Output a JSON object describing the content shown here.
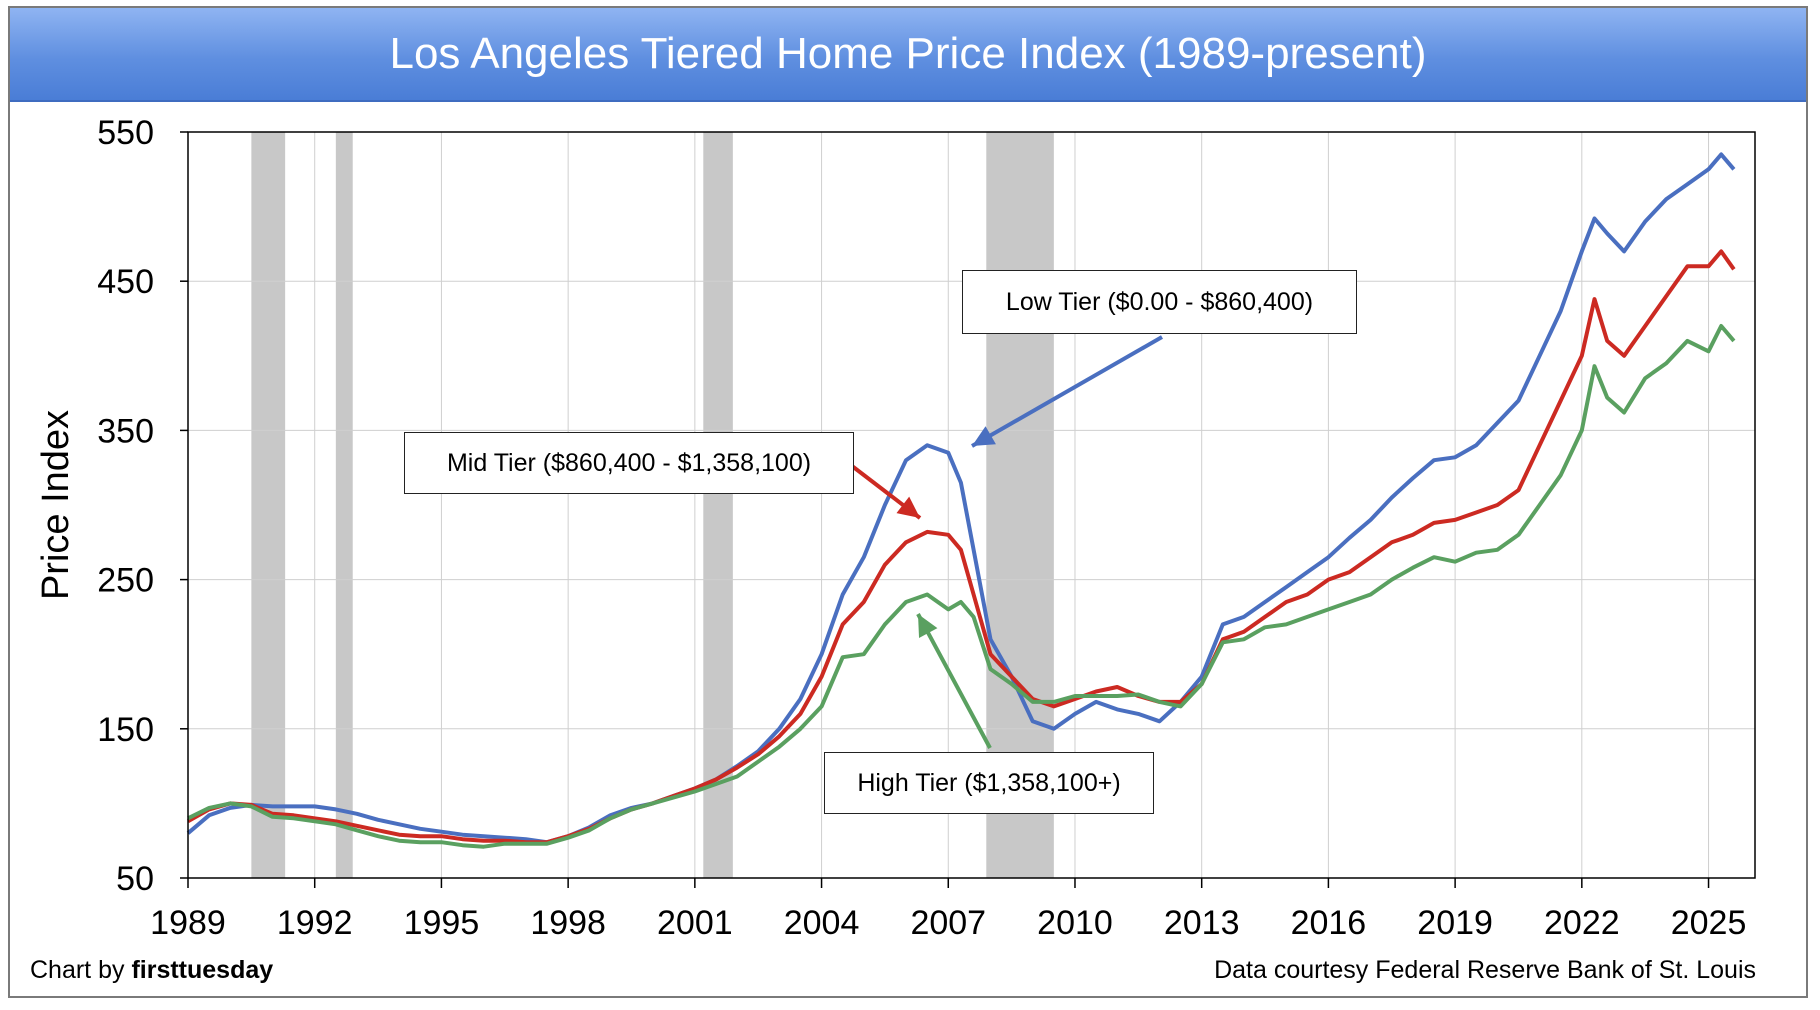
{
  "chart_data": {
    "type": "line",
    "title": "Los Angeles Tiered Home Price Index (1989-present)",
    "ylabel": "Price Index",
    "xlabel": "",
    "xlim": [
      1989,
      2026.1
    ],
    "ylim": [
      50,
      550
    ],
    "y_ticks": [
      50,
      150,
      250,
      350,
      450,
      550
    ],
    "x_ticks": [
      1989,
      1992,
      1995,
      1998,
      2001,
      2004,
      2007,
      2010,
      2013,
      2016,
      2019,
      2022,
      2025
    ],
    "grid": true,
    "recession_bands": [
      [
        1990.5,
        1991.3
      ],
      [
        1992.5,
        1992.9
      ],
      [
        2001.2,
        2001.9
      ],
      [
        2007.9,
        2009.5
      ]
    ],
    "series": [
      {
        "name": "Low Tier ($0.00 - $860,400)",
        "color": "#4a6fc0",
        "x": [
          1989,
          1989.5,
          1990,
          1990.5,
          1991,
          1991.5,
          1992,
          1992.5,
          1993,
          1993.5,
          1994,
          1994.5,
          1995,
          1995.5,
          1996,
          1996.5,
          1997,
          1997.5,
          1998,
          1998.5,
          1999,
          1999.5,
          2000,
          2000.5,
          2001,
          2001.5,
          2002,
          2002.5,
          2003,
          2003.5,
          2004,
          2004.5,
          2005,
          2005.5,
          2006,
          2006.5,
          2007,
          2007.3,
          2007.6,
          2008,
          2008.5,
          2009,
          2009.5,
          2010,
          2010.5,
          2011,
          2011.5,
          2012,
          2012.5,
          2013,
          2013.5,
          2014,
          2014.5,
          2015,
          2015.5,
          2016,
          2016.5,
          2017,
          2017.5,
          2018,
          2018.5,
          2019,
          2019.5,
          2020,
          2020.5,
          2021,
          2021.5,
          2022,
          2022.3,
          2022.6,
          2023,
          2023.5,
          2024,
          2024.5,
          2025,
          2025.3,
          2025.6
        ],
        "y": [
          80,
          92,
          97,
          99,
          98,
          98,
          98,
          96,
          93,
          89,
          86,
          83,
          81,
          79,
          78,
          77,
          76,
          74,
          78,
          84,
          92,
          97,
          100,
          105,
          110,
          116,
          125,
          135,
          150,
          170,
          200,
          240,
          265,
          300,
          330,
          340,
          335,
          315,
          270,
          210,
          185,
          155,
          150,
          160,
          168,
          163,
          160,
          155,
          168,
          185,
          220,
          225,
          235,
          245,
          255,
          265,
          278,
          290,
          305,
          318,
          330,
          332,
          340,
          355,
          370,
          400,
          430,
          470,
          492,
          482,
          470,
          490,
          505,
          515,
          525,
          535,
          525
        ]
      },
      {
        "name": "Mid Tier ($860,400 - $1,358,100)",
        "color": "#cc2a22",
        "x": [
          1989,
          1989.5,
          1990,
          1990.5,
          1991,
          1991.5,
          1992,
          1992.5,
          1993,
          1993.5,
          1994,
          1994.5,
          1995,
          1995.5,
          1996,
          1996.5,
          1997,
          1997.5,
          1998,
          1998.5,
          1999,
          1999.5,
          2000,
          2000.5,
          2001,
          2001.5,
          2002,
          2002.5,
          2003,
          2003.5,
          2004,
          2004.5,
          2005,
          2005.5,
          2006,
          2006.5,
          2007,
          2007.3,
          2007.6,
          2008,
          2008.5,
          2009,
          2009.5,
          2010,
          2010.5,
          2011,
          2011.5,
          2012,
          2012.5,
          2013,
          2013.5,
          2014,
          2014.5,
          2015,
          2015.5,
          2016,
          2016.5,
          2017,
          2017.5,
          2018,
          2018.5,
          2019,
          2019.5,
          2020,
          2020.5,
          2021,
          2021.5,
          2022,
          2022.3,
          2022.6,
          2023,
          2023.5,
          2024,
          2024.5,
          2025,
          2025.3,
          2025.6
        ],
        "y": [
          88,
          96,
          100,
          99,
          93,
          92,
          90,
          88,
          85,
          82,
          79,
          78,
          78,
          76,
          75,
          75,
          74,
          74,
          78,
          83,
          90,
          96,
          100,
          105,
          110,
          116,
          124,
          133,
          145,
          160,
          185,
          220,
          235,
          260,
          275,
          282,
          280,
          270,
          240,
          200,
          185,
          170,
          165,
          170,
          175,
          178,
          172,
          168,
          168,
          180,
          210,
          215,
          225,
          235,
          240,
          250,
          255,
          265,
          275,
          280,
          288,
          290,
          295,
          300,
          310,
          340,
          370,
          400,
          438,
          410,
          400,
          420,
          440,
          460,
          460,
          470,
          458
        ]
      },
      {
        "name": "High Tier ($1,358,100+)",
        "color": "#5aa060",
        "x": [
          1989,
          1989.5,
          1990,
          1990.5,
          1991,
          1991.5,
          1992,
          1992.5,
          1993,
          1993.5,
          1994,
          1994.5,
          1995,
          1995.5,
          1996,
          1996.5,
          1997,
          1997.5,
          1998,
          1998.5,
          1999,
          1999.5,
          2000,
          2000.5,
          2001,
          2001.5,
          2002,
          2002.5,
          2003,
          2003.5,
          2004,
          2004.5,
          2005,
          2005.5,
          2006,
          2006.5,
          2007,
          2007.3,
          2007.6,
          2008,
          2008.5,
          2009,
          2009.5,
          2010,
          2010.5,
          2011,
          2011.5,
          2012,
          2012.5,
          2013,
          2013.5,
          2014,
          2014.5,
          2015,
          2015.5,
          2016,
          2016.5,
          2017,
          2017.5,
          2018,
          2018.5,
          2019,
          2019.5,
          2020,
          2020.5,
          2021,
          2021.5,
          2022,
          2022.3,
          2022.6,
          2023,
          2023.5,
          2024,
          2024.5,
          2025,
          2025.3,
          2025.6
        ],
        "y": [
          90,
          97,
          100,
          98,
          91,
          90,
          88,
          86,
          82,
          78,
          75,
          74,
          74,
          72,
          71,
          73,
          73,
          73,
          77,
          82,
          90,
          96,
          100,
          104,
          108,
          113,
          118,
          128,
          138,
          150,
          165,
          198,
          200,
          220,
          235,
          240,
          230,
          235,
          225,
          190,
          180,
          168,
          168,
          172,
          172,
          172,
          173,
          168,
          165,
          180,
          208,
          210,
          218,
          220,
          225,
          230,
          235,
          240,
          250,
          258,
          265,
          262,
          268,
          270,
          280,
          300,
          320,
          350,
          393,
          372,
          362,
          385,
          395,
          410,
          403,
          420,
          410
        ]
      }
    ],
    "annotations": {
      "low": "Low Tier ($0.00 - $860,400)",
      "mid": "Mid Tier ($860,400 - $1,358,100)",
      "high": "High Tier ($1,358,100+)"
    }
  },
  "footer": {
    "credit_prefix": "Chart by ",
    "credit_brand": "firsttuesday",
    "source": "Data courtesy Federal Reserve Bank of St. Louis"
  }
}
